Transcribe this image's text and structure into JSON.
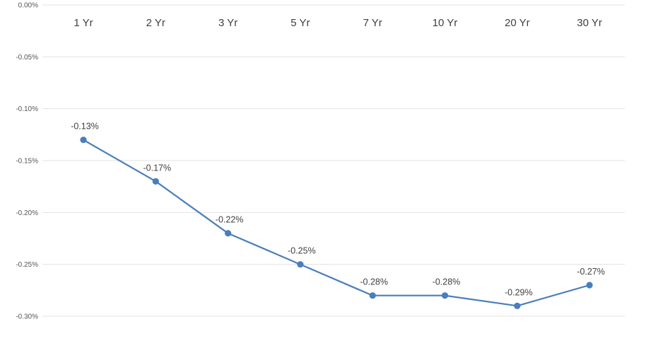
{
  "chart_data": {
    "type": "line",
    "title": "",
    "xlabel": "",
    "ylabel": "",
    "categories": [
      "1 Yr",
      "2 Yr",
      "3 Yr",
      "5 Yr",
      "7 Yr",
      "10 Yr",
      "20 Yr",
      "30 Yr"
    ],
    "series": [
      {
        "values": [
          -0.13,
          -0.17,
          -0.22,
          -0.25,
          -0.28,
          -0.28,
          -0.29,
          -0.27
        ],
        "data_labels": [
          "-0.13%",
          "-0.17%",
          "-0.22%",
          "-0.25%",
          "-0.28%",
          "-0.28%",
          "-0.29%",
          "-0.27%"
        ],
        "color": "#4a7ebb"
      }
    ],
    "ylim": [
      -0.3,
      0.0
    ],
    "y_ticks": [
      0.0,
      -0.05,
      -0.1,
      -0.15,
      -0.2,
      -0.25,
      -0.3
    ],
    "y_tick_labels": [
      "0.00%",
      "-0.05%",
      "-0.10%",
      "-0.15%",
      "-0.20%",
      "-0.25%",
      "-0.30%"
    ],
    "x_axis_position": "top",
    "grid": true,
    "legend": "none",
    "grid_color": "#e3e3e3"
  }
}
